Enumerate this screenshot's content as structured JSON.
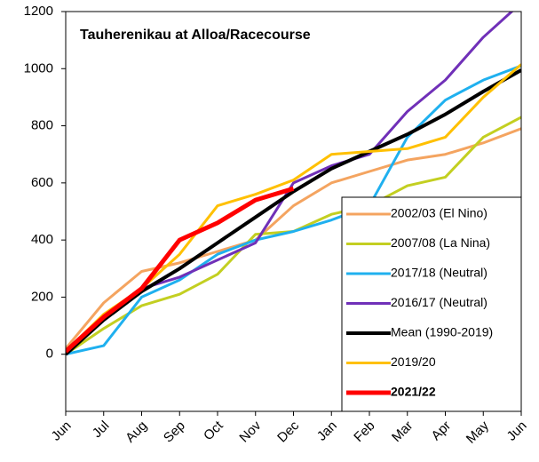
{
  "chart_data": {
    "type": "line",
    "title": "Tauherenikau at Alloa/Racecourse",
    "categories": [
      "Jun",
      "Jul",
      "Aug",
      "Sep",
      "Oct",
      "Nov",
      "Dec",
      "Jan",
      "Feb",
      "Mar",
      "Apr",
      "May",
      "Jun"
    ],
    "ylim": [
      -200,
      1200
    ],
    "yticks": [
      0,
      200,
      400,
      600,
      800,
      1000,
      1200
    ],
    "grid": false,
    "legend": "lower right",
    "series": [
      {
        "name": "2002/03 (El Nino)",
        "color": "#f4a460",
        "width": 3,
        "values": [
          20,
          180,
          290,
          320,
          360,
          400,
          520,
          600,
          640,
          680,
          700,
          740,
          790
        ]
      },
      {
        "name": "2007/08 (La Nina)",
        "color": "#c3cf21",
        "width": 3,
        "values": [
          0,
          90,
          170,
          210,
          280,
          420,
          430,
          490,
          520,
          590,
          620,
          760,
          830
        ]
      },
      {
        "name": "2017/18 (Neutral)",
        "color": "#1fb0ef",
        "width": 3,
        "values": [
          0,
          30,
          200,
          260,
          350,
          400,
          430,
          470,
          520,
          760,
          890,
          960,
          1010
        ]
      },
      {
        "name": "2016/17 (Neutral)",
        "color": "#7030b8",
        "width": 3,
        "values": [
          0,
          130,
          230,
          270,
          330,
          390,
          600,
          660,
          700,
          850,
          960,
          1110,
          1230
        ]
      },
      {
        "name": "Mean (1990-2019)",
        "color": "#000000",
        "width": 4,
        "values": [
          0,
          120,
          220,
          300,
          390,
          480,
          570,
          650,
          710,
          770,
          840,
          920,
          995
        ]
      },
      {
        "name": "2019/20",
        "color": "#ffc000",
        "width": 3,
        "values": [
          10,
          140,
          230,
          350,
          520,
          560,
          610,
          700,
          710,
          720,
          760,
          900,
          1015
        ]
      },
      {
        "name": "2021/22",
        "color": "#ff0000",
        "width": 5,
        "bold": true,
        "values": [
          10,
          130,
          230,
          400,
          460,
          540,
          580,
          null,
          null,
          null,
          null,
          null,
          null
        ]
      }
    ]
  }
}
